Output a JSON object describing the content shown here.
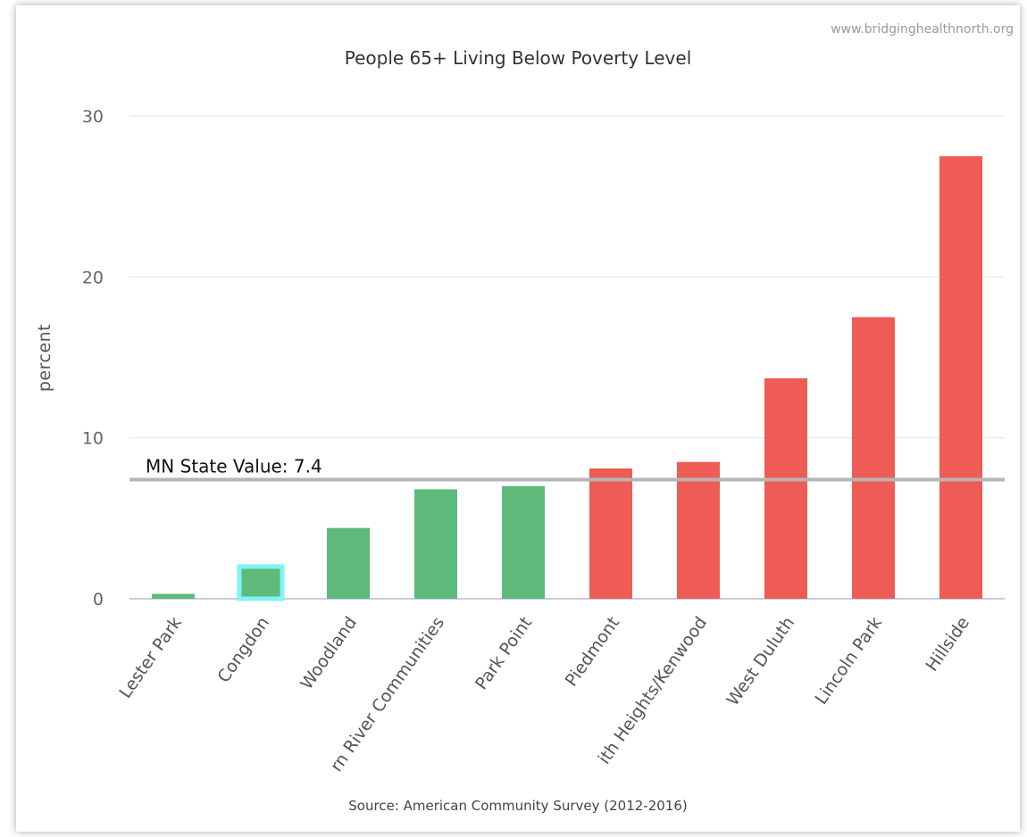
{
  "credit": "www.bridginghealthnorth.org",
  "chart_data": {
    "type": "bar",
    "title": "People 65+ Living Below Poverty Level",
    "ylabel": "percent",
    "xlabel": "",
    "ylim": [
      0,
      30
    ],
    "yticks": [
      "0",
      "10",
      "20",
      "30"
    ],
    "grid": true,
    "categories": [
      "Lester Park",
      "Congdon",
      "Woodland",
      "rn River Communities",
      "Park Point",
      "Piedmont",
      "ith Heights/Kenwood",
      "West Duluth",
      "Lincoln Park",
      "Hillside"
    ],
    "values": [
      0.3,
      2.0,
      4.4,
      6.8,
      7.0,
      8.1,
      8.5,
      13.7,
      17.5,
      27.5
    ],
    "bar_colors": [
      "#5dba7a",
      "#5dba7a",
      "#5dba7a",
      "#5dba7a",
      "#5dba7a",
      "#ee5c55",
      "#ee5c55",
      "#ee5c55",
      "#ee5c55",
      "#ee5c55"
    ],
    "highlighted_category": "Congdon",
    "highlight_color": "#7ff3f5",
    "reference_line": {
      "value": 7.4,
      "label": "MN State Value: 7.4",
      "color": "#b5b5b5"
    },
    "source": "Source: American Community Survey (2012-2016)"
  }
}
